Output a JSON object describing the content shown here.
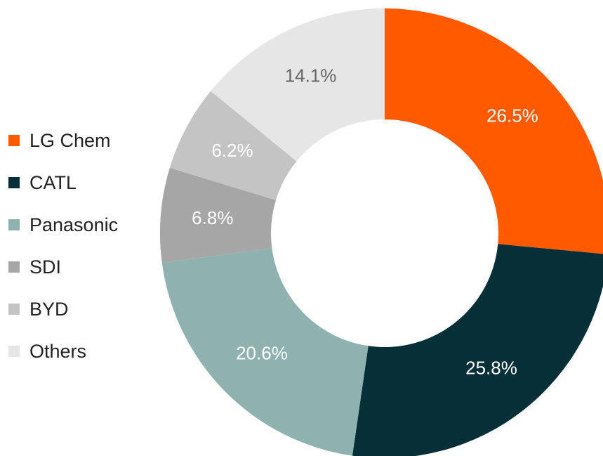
{
  "chart_data": {
    "type": "pie",
    "variant": "donut",
    "start": "12 o'clock, clockwise",
    "legend_position": "left",
    "series": [
      {
        "name": "LG Chem",
        "value": 26.5,
        "label": "26.5%",
        "color": "#ff5a00",
        "label_color": "#ffffff"
      },
      {
        "name": "CATL",
        "value": 25.8,
        "label": "25.8%",
        "color": "#062f38",
        "label_color": "#ffffff"
      },
      {
        "name": "Panasonic",
        "value": 20.6,
        "label": "20.6%",
        "color": "#8fb2b1",
        "label_color": "#ffffff"
      },
      {
        "name": "SDI",
        "value": 6.8,
        "label": "6.8%",
        "color": "#a6a6a6",
        "label_color": "#ffffff"
      },
      {
        "name": "BYD",
        "value": 6.2,
        "label": "6.2%",
        "color": "#c4c4c4",
        "label_color": "#ffffff"
      },
      {
        "name": "Others",
        "value": 14.1,
        "label": "14.1%",
        "color": "#e6e6e6",
        "label_color": "#666666"
      }
    ]
  }
}
